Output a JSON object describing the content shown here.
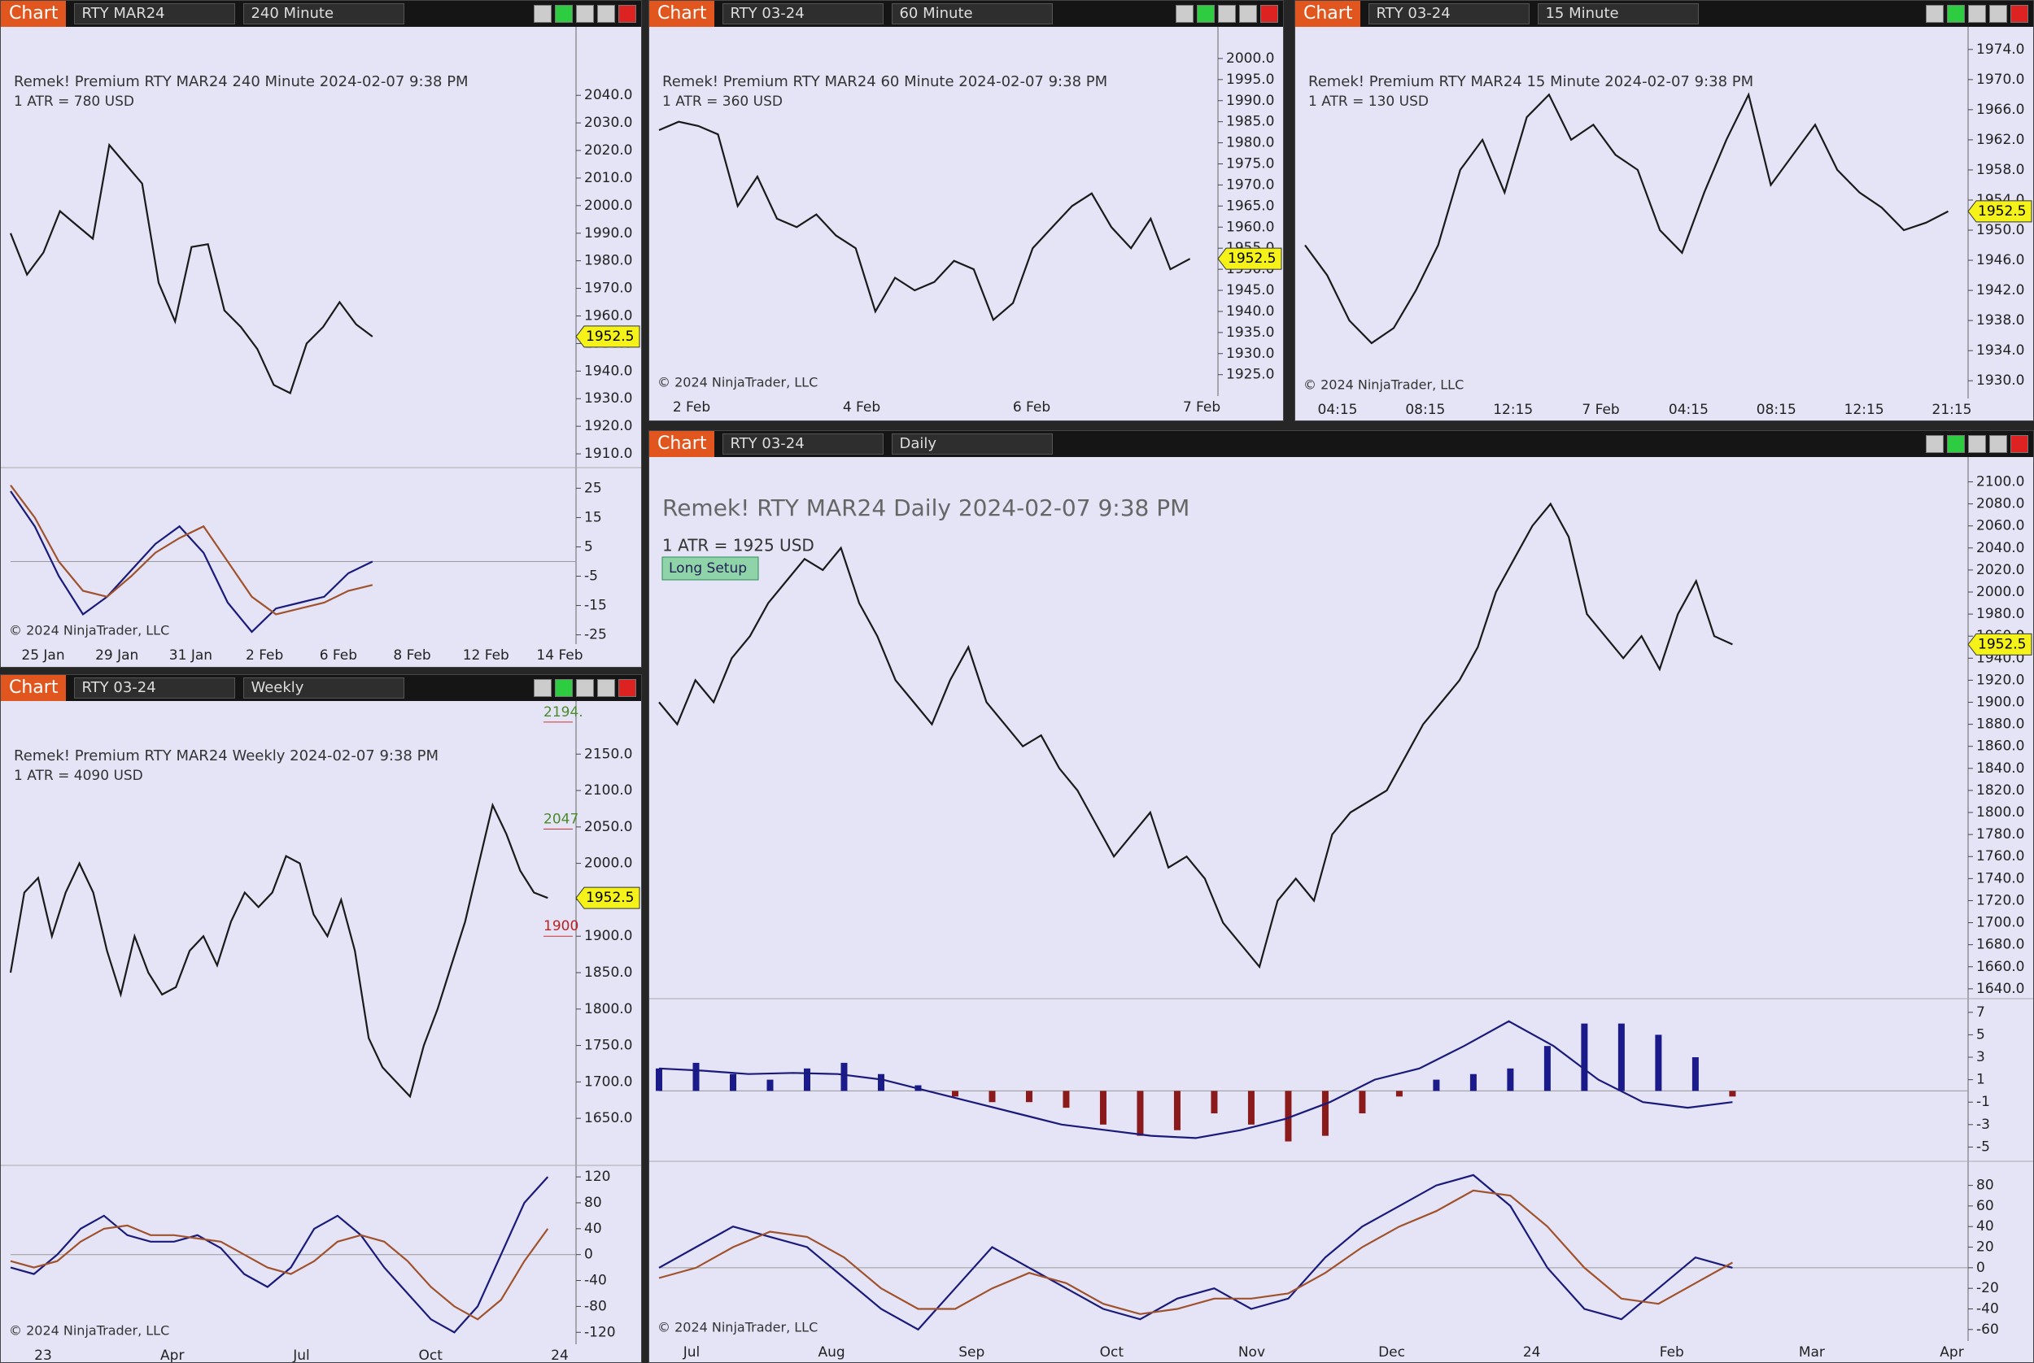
{
  "chart_data": [
    {
      "type": "line",
      "toolbar": {
        "label": "Chart",
        "instrument": "RTY MAR24",
        "interval": "240 Minute"
      },
      "title": "Remek!  Premium  RTY MAR24  240 Minute  2024-02-07 9:38 PM",
      "atr": "1 ATR = 780 USD",
      "copyright": "© 2024 NinjaTrader, LLC",
      "categories": [
        "25 Jan",
        "29 Jan",
        "31 Jan",
        "2 Feb",
        "6 Feb",
        "8 Feb",
        "12 Feb",
        "14 Feb"
      ],
      "last": 1952.5,
      "price": {
        "color": "#1a1a1a",
        "ylim": [
          1905,
          2061
        ],
        "values": [
          1990,
          1975,
          1983,
          1998,
          1993,
          1988,
          2022,
          2015,
          2008,
          1972,
          1958,
          1985,
          1986,
          1962,
          1956,
          1948,
          1935,
          1932,
          1950,
          1956,
          1965,
          1957,
          1952.5
        ],
        "yticks": [
          {
            "value": 1910,
            "label": "1910.0"
          },
          {
            "value": 1920,
            "label": "1920.0"
          },
          {
            "value": 1930,
            "label": "1930.0"
          },
          {
            "value": 1940,
            "label": "1940.0"
          },
          {
            "value": 1950,
            "label": "1950.0"
          },
          {
            "value": 1960,
            "label": "1960.0"
          },
          {
            "value": 1970,
            "label": "1970.0"
          },
          {
            "value": 1980,
            "label": "1980.0"
          },
          {
            "value": 1990,
            "label": "1990.0"
          },
          {
            "value": 2000,
            "label": "2000.0"
          },
          {
            "value": 2010,
            "label": "2010.0"
          },
          {
            "value": 2020,
            "label": "2020.0"
          },
          {
            "value": 2030,
            "label": "2030.0"
          },
          {
            "value": 2040,
            "label": "2040.0"
          }
        ]
      },
      "panes": [
        {
          "type": "line",
          "ylim": [
            -27.6,
            31.2
          ],
          "yticks": [
            25,
            15,
            5,
            -5,
            -15,
            -25
          ],
          "series": [
            {
              "color": "#1a1a7a",
              "values": [
                24,
                12,
                -5,
                -18,
                -12,
                -3,
                6,
                12,
                3,
                -14,
                -24,
                -16,
                -14,
                -12,
                -4,
                0
              ]
            },
            {
              "color": "#a0522d",
              "values": [
                26,
                15,
                0,
                -10,
                -12,
                -5,
                3,
                8,
                12,
                0,
                -12,
                -18,
                -16,
                -14,
                -10,
                -8
              ]
            }
          ]
        }
      ]
    },
    {
      "type": "line",
      "toolbar": {
        "label": "Chart",
        "instrument": "RTY 03-24",
        "interval": "60 Minute"
      },
      "title": "Remek!  Premium  RTY MAR24  60 Minute  2024-02-07 9:38 PM",
      "atr": "1 ATR = 360 USD",
      "copyright": "© 2024 NinjaTrader, LLC",
      "categories": [
        "2 Feb",
        "4 Feb",
        "6 Feb",
        "7 Feb"
      ],
      "last": 1952.5,
      "price": {
        "color": "#1a1a1a",
        "ylim": [
          1920.7,
          2005
        ],
        "values": [
          1983,
          1985,
          1984,
          1982,
          1965,
          1972,
          1962,
          1960,
          1963,
          1958,
          1955,
          1940,
          1948,
          1945,
          1947,
          1952,
          1950,
          1938,
          1942,
          1955,
          1960,
          1965,
          1968,
          1960,
          1955,
          1962,
          1950,
          1952.5
        ],
        "yticks": [
          {
            "value": 1925,
            "label": "1925.0"
          },
          {
            "value": 1930,
            "label": "1930.0"
          },
          {
            "value": 1935,
            "label": "1935.0"
          },
          {
            "value": 1940,
            "label": "1940.0"
          },
          {
            "value": 1945,
            "label": "1945.0"
          },
          {
            "value": 1950,
            "label": "1950.0"
          },
          {
            "value": 1955,
            "label": "1955.0"
          },
          {
            "value": 1960,
            "label": "1960.0"
          },
          {
            "value": 1965,
            "label": "1965.0"
          },
          {
            "value": 1970,
            "label": "1970.0"
          },
          {
            "value": 1975,
            "label": "1975.0"
          },
          {
            "value": 1980,
            "label": "1980.0"
          },
          {
            "value": 1985,
            "label": "1985.0"
          },
          {
            "value": 1990,
            "label": "1990.0"
          },
          {
            "value": 1995,
            "label": "1995.0"
          },
          {
            "value": 2000,
            "label": "2000.0"
          }
        ]
      },
      "panes": []
    },
    {
      "type": "line",
      "toolbar": {
        "label": "Chart",
        "instrument": "RTY 03-24",
        "interval": "15 Minute"
      },
      "title": "Remek!  Premium  RTY MAR24  15 Minute  2024-02-07 9:38 PM",
      "atr": "1 ATR = 130 USD",
      "copyright": "© 2024 NinjaTrader, LLC",
      "categories": [
        "04:15",
        "08:15",
        "12:15",
        "7 Feb",
        "04:15",
        "08:15",
        "12:15",
        "21:15"
      ],
      "last": 1952.5,
      "price": {
        "color": "#1a1a1a",
        "ylim": [
          1928.4,
          1975.6
        ],
        "values": [
          1948,
          1944,
          1938,
          1935,
          1937,
          1942,
          1948,
          1958,
          1962,
          1955,
          1965,
          1968,
          1962,
          1964,
          1960,
          1958,
          1950,
          1947,
          1955,
          1962,
          1968,
          1956,
          1960,
          1964,
          1958,
          1955,
          1953,
          1950,
          1951,
          1952.5
        ],
        "yticks": [
          {
            "value": 1930,
            "label": "1930.0"
          },
          {
            "value": 1934,
            "label": "1934.0"
          },
          {
            "value": 1938,
            "label": "1938.0"
          },
          {
            "value": 1942,
            "label": "1942.0"
          },
          {
            "value": 1946,
            "label": "1946.0"
          },
          {
            "value": 1950,
            "label": "1950.0"
          },
          {
            "value": 1954,
            "label": "1954.0"
          },
          {
            "value": 1958,
            "label": "1958.0"
          },
          {
            "value": 1962,
            "label": "1962.0"
          },
          {
            "value": 1966,
            "label": "1966.0"
          },
          {
            "value": 1970,
            "label": "1970.0"
          },
          {
            "value": 1974,
            "label": "1974.0"
          }
        ]
      },
      "panes": []
    },
    {
      "type": "line",
      "toolbar": {
        "label": "Chart",
        "instrument": "RTY 03-24",
        "interval": "Weekly"
      },
      "title": "Remek!  Premium  RTY MAR24  Weekly  2024-02-07 9:38 PM",
      "atr": "1 ATR = 4090 USD",
      "copyright": "© 2024 NinjaTrader, LLC",
      "categories": [
        "23",
        "Apr",
        "Jul",
        "Oct",
        "24"
      ],
      "last": 1952.5,
      "annotations": [
        {
          "value": 2194,
          "label": "2194."
        },
        {
          "value": 2047,
          "label": "2047"
        },
        {
          "value": 1900,
          "label": "1900"
        }
      ],
      "price": {
        "color": "#1a1a1a",
        "ylim": [
          1591,
          2205
        ],
        "values": [
          1850,
          1960,
          1980,
          1900,
          1960,
          2000,
          1960,
          1880,
          1820,
          1900,
          1850,
          1820,
          1830,
          1880,
          1900,
          1860,
          1920,
          1960,
          1940,
          1960,
          2010,
          2000,
          1930,
          1900,
          1950,
          1880,
          1760,
          1720,
          1700,
          1680,
          1750,
          1800,
          1860,
          1920,
          2000,
          2080,
          2040,
          1990,
          1960,
          1952.5
        ],
        "yticks": [
          {
            "value": 1650,
            "label": "1650.0"
          },
          {
            "value": 1700,
            "label": "1700.0"
          },
          {
            "value": 1750,
            "label": "1750.0"
          },
          {
            "value": 1800,
            "label": "1800.0"
          },
          {
            "value": 1850,
            "label": "1850.0"
          },
          {
            "value": 1900,
            "label": "1900.0"
          },
          {
            "value": 1950,
            "label": "1950.0"
          },
          {
            "value": 2000,
            "label": "2000.0"
          },
          {
            "value": 2050,
            "label": "2050.0"
          },
          {
            "value": 2100,
            "label": "2100.0"
          },
          {
            "value": 2150,
            "label": "2150.0"
          }
        ]
      },
      "panes": [
        {
          "type": "line",
          "ylim": [
            -136,
            134
          ],
          "yticks": [
            120,
            80,
            40,
            0,
            -40,
            -80,
            -120
          ],
          "series": [
            {
              "color": "#1a1a7a",
              "values": [
                -20,
                -30,
                0,
                40,
                60,
                30,
                20,
                20,
                30,
                10,
                -30,
                -50,
                -20,
                40,
                60,
                30,
                -20,
                -60,
                -100,
                -120,
                -80,
                0,
                80,
                120
              ]
            },
            {
              "color": "#a0522d",
              "values": [
                -10,
                -20,
                -10,
                20,
                40,
                45,
                30,
                30,
                25,
                20,
                0,
                -20,
                -30,
                -10,
                20,
                30,
                20,
                -10,
                -50,
                -80,
                -100,
                -70,
                -10,
                40
              ]
            }
          ]
        }
      ]
    },
    {
      "type": "line",
      "toolbar": {
        "label": "Chart",
        "instrument": "RTY 03-24",
        "interval": "Daily"
      },
      "title": "Remek!  RTY MAR24  Daily  2024-02-07 9:38 PM",
      "atr": "1 ATR = 1925 USD",
      "setup": "Long Setup",
      "copyright": "© 2024 NinjaTrader, LLC",
      "categories": [
        "Jul",
        "Aug",
        "Sep",
        "Oct",
        "Nov",
        "Dec",
        "24",
        "Feb",
        "Mar",
        "Apr"
      ],
      "last": 1952.5,
      "price": {
        "color": "#1a1a1a",
        "ylim": [
          1634,
          2107
        ],
        "values": [
          1900,
          1880,
          1920,
          1900,
          1940,
          1960,
          1990,
          2010,
          2030,
          2020,
          2040,
          1990,
          1960,
          1920,
          1900,
          1880,
          1920,
          1950,
          1900,
          1880,
          1860,
          1870,
          1840,
          1820,
          1790,
          1760,
          1780,
          1800,
          1750,
          1760,
          1740,
          1700,
          1680,
          1660,
          1720,
          1740,
          1720,
          1780,
          1800,
          1810,
          1820,
          1850,
          1880,
          1900,
          1920,
          1950,
          2000,
          2030,
          2060,
          2080,
          2050,
          1980,
          1960,
          1940,
          1960,
          1930,
          1980,
          2010,
          1960,
          1952.5
        ],
        "yticks": [
          {
            "value": 1640,
            "label": "1640.0"
          },
          {
            "value": 1660,
            "label": "1660.0"
          },
          {
            "value": 1680,
            "label": "1680.0"
          },
          {
            "value": 1700,
            "label": "1700.0"
          },
          {
            "value": 1720,
            "label": "1720.0"
          },
          {
            "value": 1740,
            "label": "1740.0"
          },
          {
            "value": 1760,
            "label": "1760.0"
          },
          {
            "value": 1780,
            "label": "1780.0"
          },
          {
            "value": 1800,
            "label": "1800.0"
          },
          {
            "value": 1820,
            "label": "1820.0"
          },
          {
            "value": 1840,
            "label": "1840.0"
          },
          {
            "value": 1860,
            "label": "1860.0"
          },
          {
            "value": 1880,
            "label": "1880.0"
          },
          {
            "value": 1900,
            "label": "1900.0"
          },
          {
            "value": 1920,
            "label": "1920.0"
          },
          {
            "value": 1940,
            "label": "1940.0"
          },
          {
            "value": 1960,
            "label": "1960.0"
          },
          {
            "value": 1980,
            "label": "1980.0"
          },
          {
            "value": 2000,
            "label": "2000.0"
          },
          {
            "value": 2020,
            "label": "2020.0"
          },
          {
            "value": 2040,
            "label": "2040.0"
          },
          {
            "value": 2060,
            "label": "2060.0"
          },
          {
            "value": 2080,
            "label": "2080.0"
          },
          {
            "value": 2100,
            "label": "2100.0"
          }
        ]
      },
      "panes": [
        {
          "type": "bar",
          "ylim": [
            -6.2,
            8
          ],
          "yticks": [
            7,
            5,
            3,
            1,
            -1,
            -3,
            -5
          ],
          "values": [
            2,
            2.5,
            1.5,
            1,
            2,
            2.5,
            1.5,
            0.5,
            -0.5,
            -1,
            -1,
            -1.5,
            -3,
            -4,
            -3.5,
            -2,
            -3,
            -4.5,
            -4,
            -2,
            -0.5,
            1,
            1.5,
            2,
            4,
            6,
            6,
            5,
            3,
            -0.5
          ],
          "series": [
            {
              "color": "#1a1a7a",
              "values": [
                2,
                1.8,
                1.5,
                1.6,
                1.5,
                1,
                0,
                -1,
                -2,
                -3,
                -3.5,
                -4,
                -4.2,
                -3.5,
                -2.5,
                -1,
                1,
                2,
                4,
                6.2,
                4,
                1,
                -1,
                -1.5,
                -1
              ]
            }
          ]
        },
        {
          "type": "line",
          "ylim": [
            -72,
            101
          ],
          "yticks": [
            80,
            60,
            40,
            20,
            0,
            -20,
            -40,
            -60
          ],
          "series": [
            {
              "color": "#1a1a7a",
              "values": [
                0,
                20,
                40,
                30,
                20,
                -10,
                -40,
                -60,
                -20,
                20,
                0,
                -20,
                -40,
                -50,
                -30,
                -20,
                -40,
                -30,
                10,
                40,
                60,
                80,
                90,
                60,
                0,
                -40,
                -50,
                -20,
                10,
                0
              ]
            },
            {
              "color": "#a0522d",
              "values": [
                -10,
                0,
                20,
                35,
                30,
                10,
                -20,
                -40,
                -40,
                -20,
                -5,
                -15,
                -35,
                -45,
                -40,
                -30,
                -30,
                -25,
                -5,
                20,
                40,
                55,
                75,
                70,
                40,
                0,
                -30,
                -35,
                -15,
                5
              ]
            }
          ]
        }
      ]
    }
  ]
}
